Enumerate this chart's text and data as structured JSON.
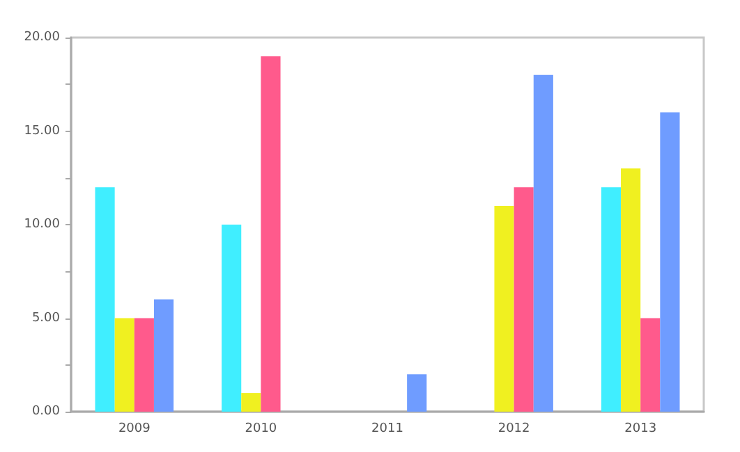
{
  "chart_data": {
    "type": "bar",
    "categories": [
      "2009",
      "2010",
      "2011",
      "2012",
      "2013"
    ],
    "series": [
      {
        "color": "#40eeff",
        "values": [
          12,
          10,
          null,
          null,
          12
        ]
      },
      {
        "color": "#f0f020",
        "values": [
          5,
          1,
          null,
          11,
          13
        ]
      },
      {
        "color": "#ff5a8c",
        "values": [
          5,
          19,
          null,
          12,
          5
        ]
      },
      {
        "color": "#6f9cff",
        "values": [
          6,
          null,
          2,
          18,
          16
        ]
      }
    ],
    "ylim": [
      0,
      20
    ],
    "yticks": [
      {
        "value": 0,
        "label": "0.00"
      },
      {
        "value": 2.5,
        "label": null
      },
      {
        "value": 5,
        "label": "5.00"
      },
      {
        "value": 7.5,
        "label": null
      },
      {
        "value": 10,
        "label": "10.00"
      },
      {
        "value": 12.5,
        "label": null
      },
      {
        "value": 15,
        "label": "15.00"
      },
      {
        "value": 17.5,
        "label": null
      },
      {
        "value": 20,
        "label": "20.00"
      }
    ],
    "grid": false
  }
}
